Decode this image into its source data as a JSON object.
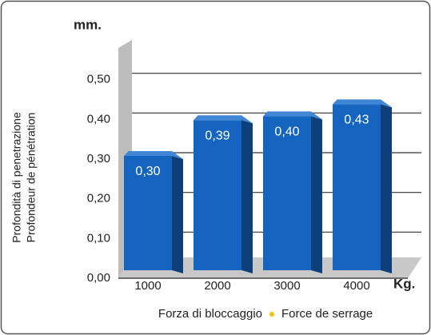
{
  "chart_data": {
    "type": "bar3d",
    "y_unit": "mm.",
    "x_unit": "Kg.",
    "y_label": [
      "Profondità di penetrazione",
      "Profondeur de pénétration"
    ],
    "x_label": [
      "Forza di bloccaggio",
      "Force de serrage"
    ],
    "categories": [
      "1000",
      "2000",
      "3000",
      "4000"
    ],
    "values": [
      0.3,
      0.39,
      0.4,
      0.43
    ],
    "value_labels": [
      "0,30",
      "0,39",
      "0,40",
      "0,43"
    ],
    "color": "#1565c0",
    "ylim": [
      0,
      0.6
    ],
    "yticks": [
      {
        "value": 0,
        "label": "0,00"
      },
      {
        "value": 0.1,
        "label": "0,10"
      },
      {
        "value": 0.2,
        "label": "0,20"
      },
      {
        "value": 0.3,
        "label": "0,30"
      },
      {
        "value": 0.4,
        "label": "0,40"
      },
      {
        "value": 0.5,
        "label": "0,50"
      }
    ],
    "grid": true
  }
}
